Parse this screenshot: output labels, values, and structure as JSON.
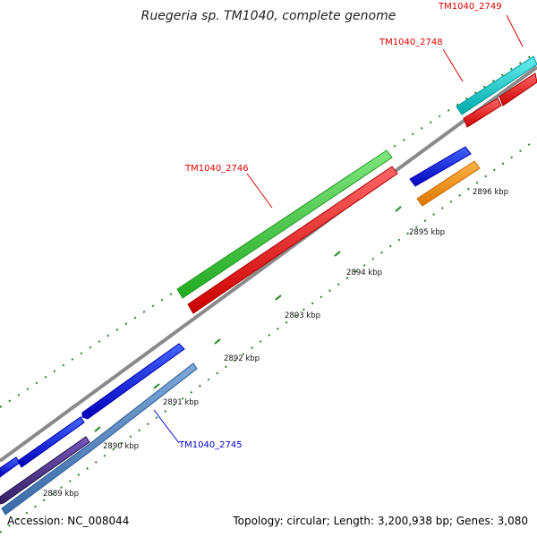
{
  "title": "Ruegeria sp. TM1040, complete genome",
  "footer": {
    "accession": "Accession: NC_008044",
    "summary": "Topology: circular; Length: 3,200,938 bp; Genes: 3,080"
  },
  "scale_labels": [
    "2889 kbp",
    "2890 kbp",
    "2891 kbp",
    "2892 kbp",
    "2893 kbp",
    "2894 kbp",
    "2895 kbp",
    "2896 kbp"
  ],
  "gene_labels": [
    {
      "text": "TM1040_2749",
      "color": "#dd0000"
    },
    {
      "text": "TM1040_2748",
      "color": "#dd0000"
    },
    {
      "text": "TM1040_2746",
      "color": "#dd0000"
    },
    {
      "text": "TM1040_2745",
      "color": "#0000dd"
    }
  ],
  "colors": {
    "backbone": "#8a8a8a",
    "cds": "#ff0000",
    "forward_gene": "#0000ff",
    "reverse_gene": "#4a7ec0",
    "highlight_green": "#33cc33",
    "highlight_cyan": "#00cccc",
    "highlight_orange": "#ff8800",
    "rna": "#553399",
    "tick": "#228822"
  }
}
